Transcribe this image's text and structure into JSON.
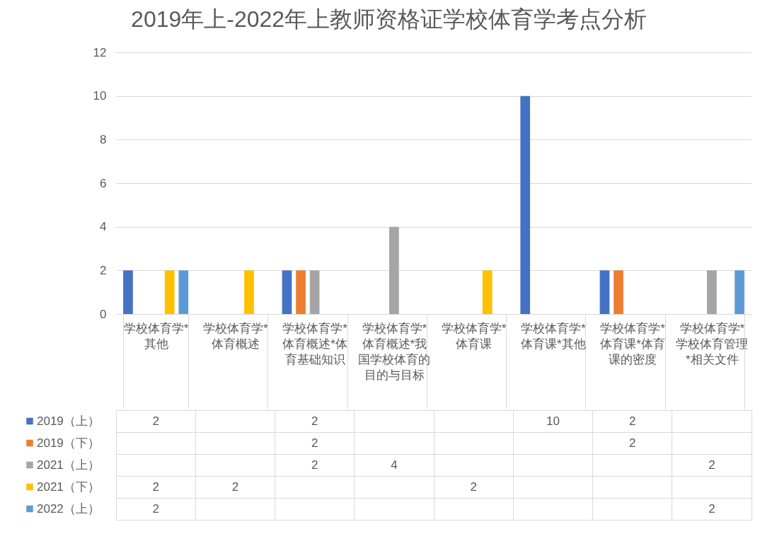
{
  "chart_data": {
    "type": "bar",
    "title": "2019年上-2022年上教师资格证学校体育学考点分析",
    "categories": [
      "学校体育学*其他",
      "学校体育学*体育概述",
      "学校体育学*体育概述*体育基础知识",
      "学校体育学*体育概述*我国学校体育的目的与目标",
      "学校体育学*体育课",
      "学校体育学*体育课*其他",
      "学校体育学*体育课*体育课的密度",
      "学校体育学*学校体育管理*相关文件"
    ],
    "series": [
      {
        "name": "2019（上）",
        "color": "#4472c4",
        "values": [
          2,
          null,
          2,
          null,
          null,
          10,
          2,
          null
        ]
      },
      {
        "name": "2019（下）",
        "color": "#ed7d31",
        "values": [
          null,
          null,
          2,
          null,
          null,
          null,
          2,
          null
        ]
      },
      {
        "name": "2021（上）",
        "color": "#a5a5a5",
        "values": [
          null,
          null,
          2,
          4,
          null,
          null,
          null,
          2
        ]
      },
      {
        "name": "2021（下）",
        "color": "#ffc000",
        "values": [
          2,
          2,
          null,
          null,
          2,
          null,
          null,
          null
        ]
      },
      {
        "name": "2022（上）",
        "color": "#5b9bd5",
        "values": [
          2,
          null,
          null,
          null,
          null,
          null,
          null,
          2
        ]
      }
    ],
    "legend": "bottom left",
    "ylim": [
      0,
      12
    ],
    "yticks": [
      0,
      2,
      4,
      6,
      8,
      10,
      12
    ],
    "grid": "y",
    "data_labels": true
  }
}
